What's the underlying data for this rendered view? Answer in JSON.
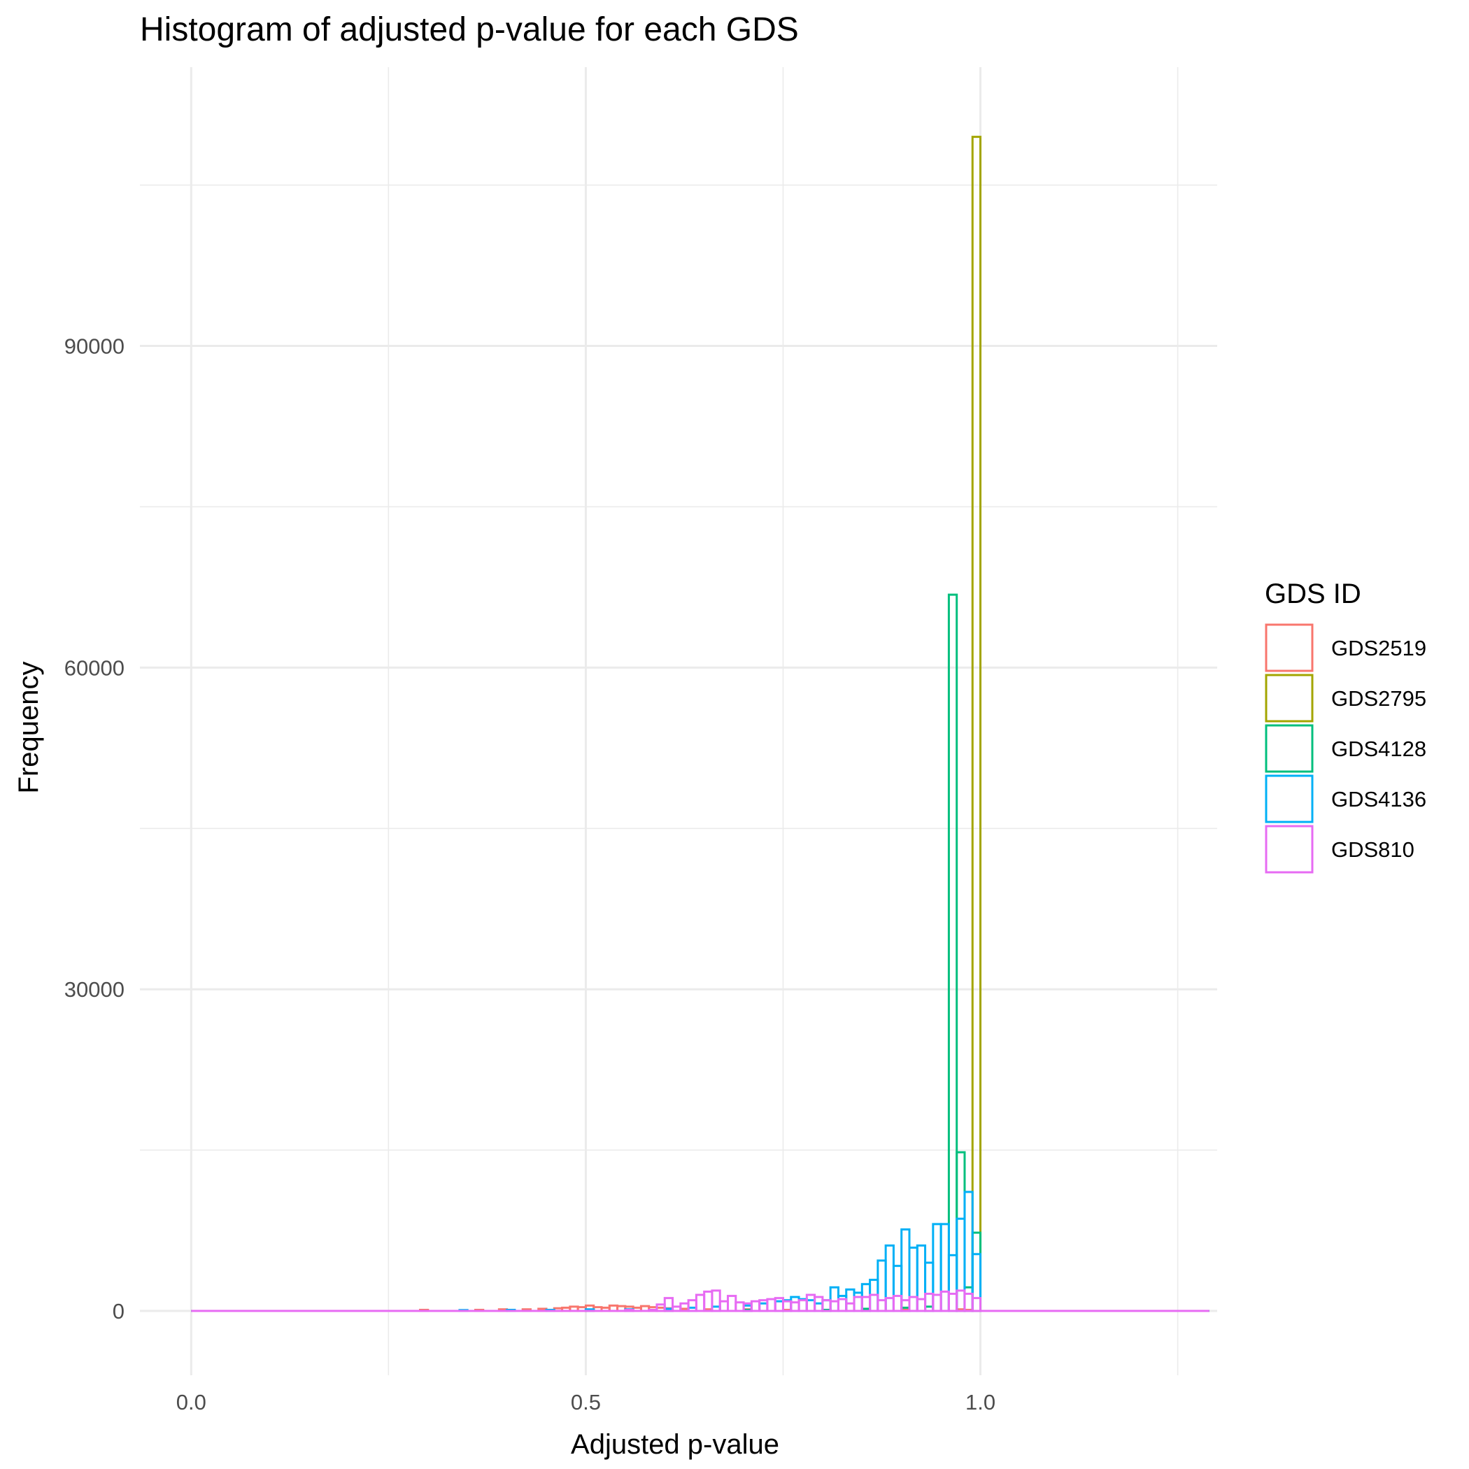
{
  "chart_data": {
    "type": "histogram",
    "title": "Histogram of adjusted p-value for each GDS",
    "xlabel": "Adjusted p-value",
    "ylabel": "Frequency",
    "xlim": [
      -0.065,
      1.3
    ],
    "ylim": [
      -6000,
      116000
    ],
    "x_ticks": [
      0.0,
      0.5,
      1.0
    ],
    "x_tick_labels": [
      "0.0",
      "0.5",
      "1.0"
    ],
    "y_ticks": [
      0,
      30000,
      60000,
      90000
    ],
    "y_tick_labels": [
      "0",
      "30000",
      "60000",
      "90000"
    ],
    "grid": true,
    "bin_width": 0.01,
    "baseline_range": [
      0.0,
      1.29
    ],
    "legend": {
      "title": "GDS ID",
      "position": "right",
      "entries": [
        "GDS2519",
        "GDS2795",
        "GDS4128",
        "GDS4136",
        "GDS810"
      ]
    },
    "series": [
      {
        "name": "GDS2519",
        "color": "#F8766D",
        "bins": [
          [
            0.29,
            100
          ],
          [
            0.36,
            100
          ],
          [
            0.39,
            150
          ],
          [
            0.42,
            150
          ],
          [
            0.44,
            200
          ],
          [
            0.46,
            250
          ],
          [
            0.47,
            300
          ],
          [
            0.48,
            400
          ],
          [
            0.49,
            350
          ],
          [
            0.5,
            500
          ],
          [
            0.51,
            350
          ],
          [
            0.52,
            300
          ],
          [
            0.53,
            500
          ],
          [
            0.54,
            450
          ],
          [
            0.55,
            400
          ],
          [
            0.56,
            300
          ],
          [
            0.57,
            450
          ],
          [
            0.58,
            350
          ],
          [
            0.59,
            300
          ],
          [
            0.6,
            250
          ],
          [
            0.62,
            200
          ],
          [
            0.65,
            150
          ],
          [
            0.7,
            150
          ],
          [
            0.75,
            100
          ],
          [
            0.8,
            100
          ],
          [
            0.9,
            100
          ],
          [
            0.97,
            150
          ],
          [
            0.98,
            100
          ]
        ]
      },
      {
        "name": "GDS2795",
        "color": "#A3A500",
        "bins": [
          [
            0.99,
            109500
          ]
        ]
      },
      {
        "name": "GDS4128",
        "color": "#00BF7D",
        "bins": [
          [
            0.5,
            100
          ],
          [
            0.6,
            100
          ],
          [
            0.7,
            100
          ],
          [
            0.8,
            100
          ],
          [
            0.85,
            200
          ],
          [
            0.9,
            300
          ],
          [
            0.93,
            400
          ],
          [
            0.96,
            66800
          ],
          [
            0.97,
            14800
          ],
          [
            0.98,
            2200
          ],
          [
            0.99,
            7300
          ]
        ]
      },
      {
        "name": "GDS4136",
        "color": "#00B0F6",
        "bins": [
          [
            0.34,
            80
          ],
          [
            0.4,
            100
          ],
          [
            0.45,
            100
          ],
          [
            0.5,
            150
          ],
          [
            0.55,
            150
          ],
          [
            0.6,
            200
          ],
          [
            0.63,
            300
          ],
          [
            0.66,
            400
          ],
          [
            0.7,
            500
          ],
          [
            0.72,
            700
          ],
          [
            0.74,
            900
          ],
          [
            0.75,
            1000
          ],
          [
            0.76,
            1300
          ],
          [
            0.77,
            1100
          ],
          [
            0.78,
            1000
          ],
          [
            0.79,
            700
          ],
          [
            0.8,
            1000
          ],
          [
            0.81,
            2200
          ],
          [
            0.82,
            1400
          ],
          [
            0.83,
            2000
          ],
          [
            0.84,
            1700
          ],
          [
            0.85,
            2500
          ],
          [
            0.86,
            2900
          ],
          [
            0.87,
            4700
          ],
          [
            0.88,
            6100
          ],
          [
            0.89,
            4200
          ],
          [
            0.9,
            7600
          ],
          [
            0.91,
            5900
          ],
          [
            0.92,
            6100
          ],
          [
            0.93,
            4500
          ],
          [
            0.94,
            8100
          ],
          [
            0.95,
            8100
          ],
          [
            0.96,
            5200
          ],
          [
            0.97,
            8600
          ],
          [
            0.98,
            11100
          ],
          [
            0.99,
            5300
          ]
        ]
      },
      {
        "name": "GDS810",
        "color": "#E76BF3",
        "bins": [
          [
            0.55,
            100
          ],
          [
            0.58,
            100
          ],
          [
            0.59,
            600
          ],
          [
            0.6,
            1200
          ],
          [
            0.61,
            400
          ],
          [
            0.62,
            700
          ],
          [
            0.63,
            1000
          ],
          [
            0.64,
            1500
          ],
          [
            0.65,
            1800
          ],
          [
            0.66,
            1900
          ],
          [
            0.67,
            900
          ],
          [
            0.68,
            1400
          ],
          [
            0.69,
            800
          ],
          [
            0.7,
            700
          ],
          [
            0.71,
            900
          ],
          [
            0.72,
            1000
          ],
          [
            0.73,
            1100
          ],
          [
            0.74,
            1200
          ],
          [
            0.75,
            900
          ],
          [
            0.76,
            800
          ],
          [
            0.77,
            1000
          ],
          [
            0.78,
            1500
          ],
          [
            0.79,
            1300
          ],
          [
            0.8,
            1000
          ],
          [
            0.81,
            900
          ],
          [
            0.82,
            1100
          ],
          [
            0.83,
            700
          ],
          [
            0.84,
            1300
          ],
          [
            0.85,
            1300
          ],
          [
            0.86,
            1500
          ],
          [
            0.87,
            1000
          ],
          [
            0.88,
            1200
          ],
          [
            0.89,
            1400
          ],
          [
            0.9,
            1000
          ],
          [
            0.91,
            1300
          ],
          [
            0.92,
            1100
          ],
          [
            0.93,
            1600
          ],
          [
            0.94,
            1500
          ],
          [
            0.95,
            1800
          ],
          [
            0.96,
            1600
          ],
          [
            0.97,
            1900
          ],
          [
            0.98,
            1600
          ],
          [
            0.99,
            1200
          ]
        ]
      }
    ]
  }
}
